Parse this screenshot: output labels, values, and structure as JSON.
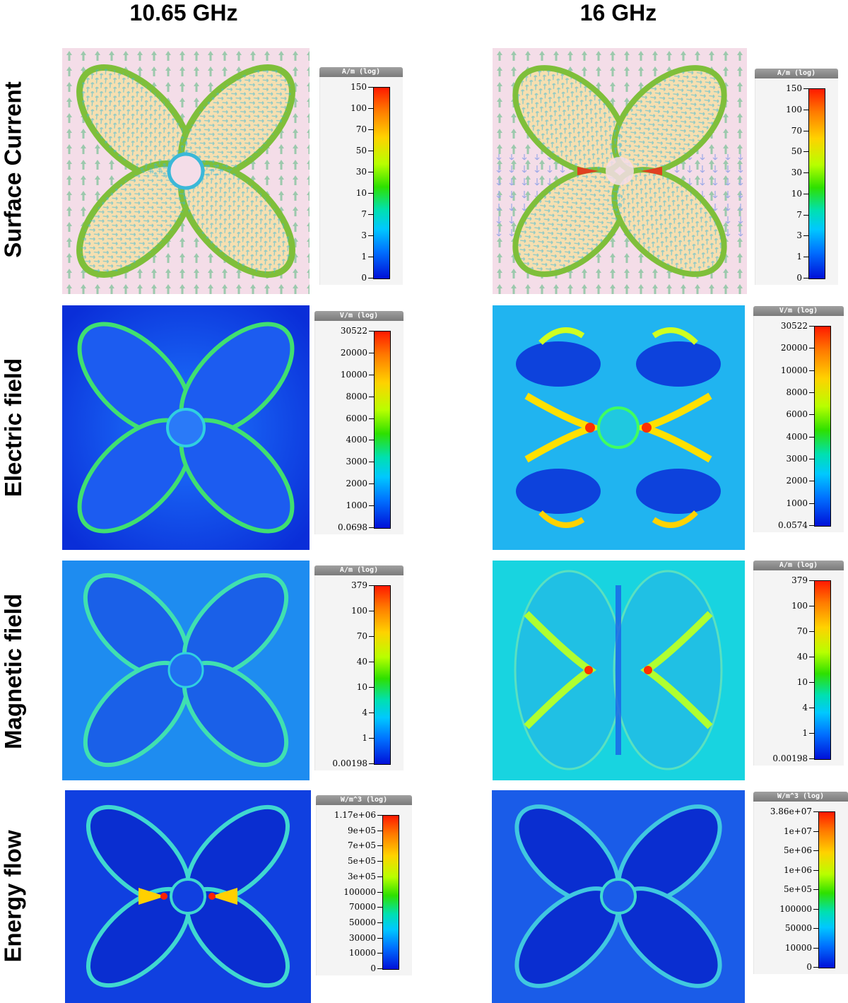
{
  "columns": [
    {
      "title": "10.65 GHz"
    },
    {
      "title": "16 GHz"
    }
  ],
  "rows": [
    {
      "title": "Surface Current"
    },
    {
      "title": "Electric field"
    },
    {
      "title": "Magnetic field"
    },
    {
      "title": "Energy flow"
    }
  ],
  "legends": {
    "sc_left": {
      "unit": "A/m (log)",
      "ticks": [
        "150",
        "100",
        "70",
        "50",
        "30",
        "10",
        "7",
        "3",
        "1",
        "0"
      ]
    },
    "sc_right": {
      "unit": "A/m (log)",
      "ticks": [
        "150",
        "100",
        "70",
        "50",
        "30",
        "10",
        "7",
        "3",
        "1",
        "0"
      ]
    },
    "ef_left": {
      "unit": "V/m (log)",
      "ticks": [
        "30522",
        "20000",
        "10000",
        "8000",
        "6000",
        "4000",
        "3000",
        "2000",
        "1000",
        "0.0698"
      ]
    },
    "ef_right": {
      "unit": "V/m (log)",
      "ticks": [
        "30522",
        "20000",
        "10000",
        "8000",
        "6000",
        "4000",
        "3000",
        "2000",
        "1000",
        "0.0574"
      ]
    },
    "mf_left": {
      "unit": "A/m (log)",
      "ticks": [
        "379",
        "100",
        "70",
        "40",
        "10",
        "4",
        "1",
        "0.00198"
      ]
    },
    "mf_right": {
      "unit": "A/m (log)",
      "ticks": [
        "379",
        "100",
        "70",
        "40",
        "10",
        "4",
        "1",
        "0.00198"
      ]
    },
    "en_left": {
      "unit": "W/m^3 (log)",
      "ticks": [
        "1.17e+06",
        "9e+05",
        "7e+05",
        "5e+05",
        "3e+05",
        "100000",
        "70000",
        "50000",
        "30000",
        "10000",
        "0"
      ]
    },
    "en_right": {
      "unit": "W/m^3 (log)",
      "ticks": [
        "3.86e+07",
        "1e+07",
        "5e+06",
        "1e+06",
        "5e+05",
        "100000",
        "50000",
        "10000",
        "0"
      ]
    }
  },
  "colors": {
    "field_low": "#1040e0",
    "field_mid": "#30d0e0",
    "field_high": "#ff2000",
    "petal_fill": "#f6dfb0",
    "substrate": "#f4dde8",
    "arrow_bg": "#9cc9ad"
  }
}
